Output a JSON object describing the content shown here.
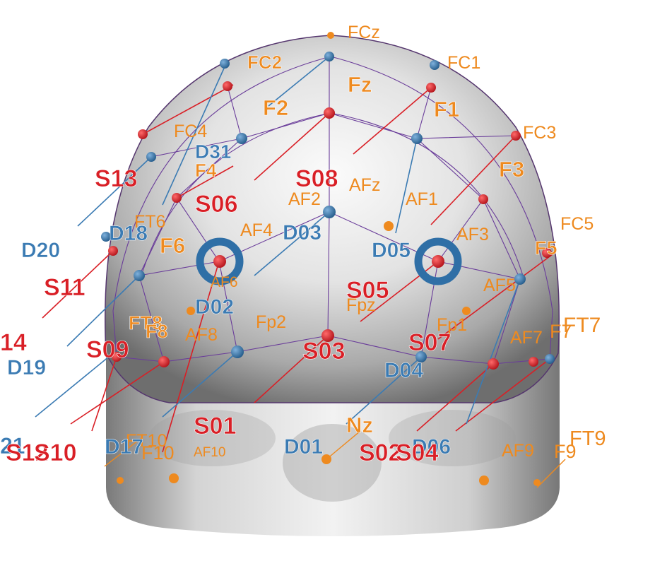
{
  "colors": {
    "source": "#d91f26",
    "detector": "#3b7bb3",
    "eeg": "#ee8a1f",
    "mesh": "#6a3d9a"
  },
  "eeg_labels": {
    "FCz": "FCz",
    "FC2": "FC2",
    "FC1": "FC1",
    "Fz": "Fz",
    "F2": "F2",
    "F1": "F1",
    "FC4": "FC4",
    "FC3": "FC3",
    "F4": "F4",
    "F3": "F3",
    "AF2": "AF2",
    "AFz": "AFz",
    "AF1": "AF1",
    "F6": "F6",
    "F5": "F5",
    "FC5": "FC5",
    "AF4": "AF4",
    "AF3": "AF3",
    "AF5": "AF5",
    "AF6": "AF6",
    "FT6": "FT6",
    "Fp2": "Fp2",
    "Fpz": "Fpz",
    "Fp1": "Fp1",
    "FT8": "FT8",
    "F8": "F8",
    "AF8": "AF8",
    "AF7": "AF7",
    "F7": "F7",
    "FT7": "FT7",
    "Nz": "Nz",
    "FT10": "FT10",
    "F10": "F10",
    "AF10": "AF10",
    "AF9": "AF9",
    "F9": "F9",
    "FT9": "FT9"
  },
  "source_labels": {
    "S13": "S13",
    "S06": "S06",
    "S08": "S08",
    "S11": "S11",
    "S05": "S05",
    "S14": "14",
    "S09": "S09",
    "S03": "S03",
    "S07": "S07",
    "S01": "S01",
    "S12": "S12",
    "S10": "S10",
    "S02": "S02",
    "S04": "S04"
  },
  "detector_labels": {
    "D31": "D31",
    "D20": "D20",
    "D18": "D18",
    "D03": "D03",
    "D05": "D05",
    "D02": "D02",
    "D19": "D19",
    "D04": "D04",
    "D17": "D17",
    "D01": "D01",
    "D06": "D06",
    "D21": "21"
  }
}
